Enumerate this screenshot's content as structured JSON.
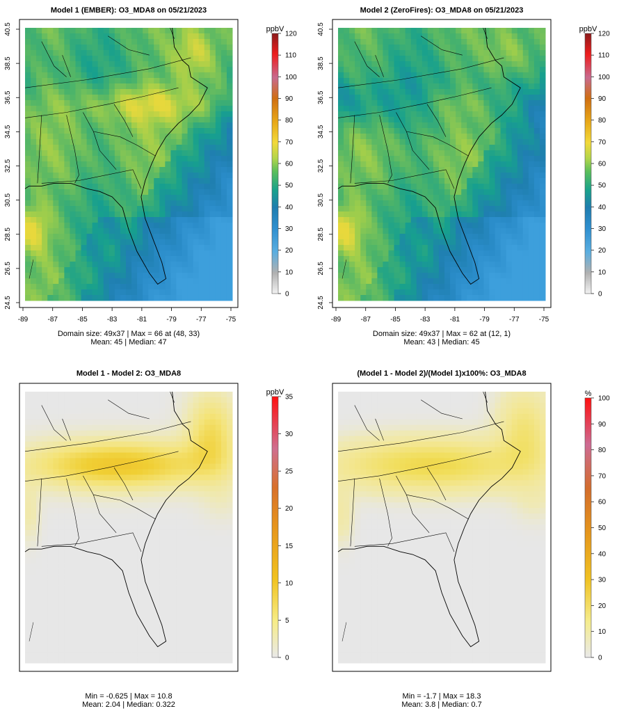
{
  "chart_data": [
    {
      "type": "heatmap",
      "title": "Model 1 (EMBER): O3_MDA8 on 05/21/2023",
      "unit": "ppbV",
      "x_ticks": [
        "-89",
        "-87",
        "-85",
        "-83",
        "-81",
        "-79",
        "-77",
        "-75"
      ],
      "y_ticks": [
        "24.5",
        "26.5",
        "28.5",
        "30.5",
        "32.5",
        "34.5",
        "36.5",
        "38.5",
        "40.5"
      ],
      "xlim": [
        -89,
        -75
      ],
      "ylim": [
        24.5,
        40.5
      ],
      "colorbar": {
        "min": 0,
        "max": 120,
        "ticks": [
          "0",
          "10",
          "20",
          "30",
          "40",
          "50",
          "60",
          "70",
          "80",
          "90",
          "100",
          "110",
          "120"
        ]
      },
      "summary": [
        "Domain size: 49x37 | Max = 66 at (48, 33)",
        "Mean: 45 |  Median: 47"
      ],
      "stats": {
        "domain_size": "49x37",
        "max": 66,
        "max_at": [
          48,
          33
        ],
        "mean": 45,
        "median": 47
      }
    },
    {
      "type": "heatmap",
      "title": "Model 2 (ZeroFires): O3_MDA8 on 05/21/2023",
      "unit": "ppbV",
      "x_ticks": [
        "-89",
        "-87",
        "-85",
        "-83",
        "-81",
        "-79",
        "-77",
        "-75"
      ],
      "y_ticks": [
        "24.5",
        "26.5",
        "28.5",
        "30.5",
        "32.5",
        "34.5",
        "36.5",
        "38.5",
        "40.5"
      ],
      "xlim": [
        -89,
        -75
      ],
      "ylim": [
        24.5,
        40.5
      ],
      "colorbar": {
        "min": 0,
        "max": 120,
        "ticks": [
          "0",
          "10",
          "20",
          "30",
          "40",
          "50",
          "60",
          "70",
          "80",
          "90",
          "100",
          "110",
          "120"
        ]
      },
      "summary": [
        "Domain size: 49x37 | Max = 62 at (12, 1)",
        "Mean: 43 |  Median: 45"
      ],
      "stats": {
        "domain_size": "49x37",
        "max": 62,
        "max_at": [
          12,
          1
        ],
        "mean": 43,
        "median": 45
      }
    },
    {
      "type": "heatmap",
      "title": "Model 1 - Model 2: O3_MDA8",
      "unit": "ppbV",
      "colorbar": {
        "min": 0,
        "max": 35,
        "ticks": [
          "0",
          "5",
          "10",
          "15",
          "20",
          "25",
          "30",
          "35"
        ]
      },
      "summary": [
        "Min = -0.625 | Max = 10.8",
        "Mean: 2.04 |  Median: 0.322"
      ],
      "stats": {
        "min": -0.625,
        "max": 10.8,
        "mean": 2.04,
        "median": 0.322
      }
    },
    {
      "type": "heatmap",
      "title": "(Model 1 - Model 2)/(Model 1)x100%: O3_MDA8",
      "unit": "%",
      "colorbar": {
        "min": 0,
        "max": 100,
        "ticks": [
          "0",
          "10",
          "20",
          "30",
          "40",
          "50",
          "60",
          "70",
          "80",
          "90",
          "100"
        ]
      },
      "summary": [
        "Min = -1.7 | Max = 18.3",
        "Mean: 3.8 |  Median: 0.7"
      ],
      "stats": {
        "min": -1.7,
        "max": 18.3,
        "mean": 3.8,
        "median": 0.7
      }
    }
  ]
}
